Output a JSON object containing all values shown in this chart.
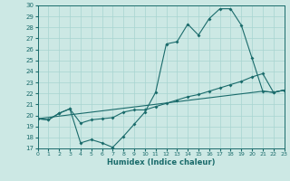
{
  "xlabel": "Humidex (Indice chaleur)",
  "bg_color": "#cce8e4",
  "line_color": "#1a6b6b",
  "grid_color": "#a8d4d0",
  "xlim": [
    0,
    23
  ],
  "ylim": [
    17,
    30
  ],
  "xticks": [
    0,
    1,
    2,
    3,
    4,
    5,
    6,
    7,
    8,
    9,
    10,
    11,
    12,
    13,
    14,
    15,
    16,
    17,
    18,
    19,
    20,
    21,
    22,
    23
  ],
  "yticks": [
    17,
    18,
    19,
    20,
    21,
    22,
    23,
    24,
    25,
    26,
    27,
    28,
    29,
    30
  ],
  "line1_x": [
    0,
    1,
    2,
    3,
    4,
    5,
    6,
    7,
    8,
    9,
    10,
    11,
    12,
    13,
    14,
    15,
    16,
    17,
    18,
    19,
    20,
    21,
    22,
    23
  ],
  "line1_y": [
    19.7,
    19.6,
    20.2,
    20.6,
    17.5,
    17.8,
    17.5,
    17.1,
    18.1,
    19.2,
    20.3,
    22.1,
    26.5,
    26.7,
    28.3,
    27.3,
    28.8,
    29.7,
    29.7,
    28.2,
    25.2,
    22.2,
    22.1,
    22.3
  ],
  "line2_x": [
    0,
    1,
    2,
    3,
    4,
    5,
    6,
    7,
    8,
    9,
    10,
    11,
    12,
    13,
    14,
    15,
    16,
    17,
    18,
    19,
    20,
    21,
    22,
    23
  ],
  "line2_y": [
    19.7,
    19.6,
    20.2,
    20.6,
    19.3,
    19.6,
    19.7,
    19.8,
    20.3,
    20.5,
    20.5,
    20.8,
    21.1,
    21.4,
    21.7,
    21.9,
    22.2,
    22.5,
    22.8,
    23.1,
    23.5,
    23.8,
    22.1,
    22.3
  ],
  "line3_x": [
    0,
    21,
    22,
    23
  ],
  "line3_y": [
    19.7,
    22.2,
    22.1,
    22.3
  ],
  "marker_style": "D",
  "marker_size": 2.0,
  "linewidth": 0.8
}
